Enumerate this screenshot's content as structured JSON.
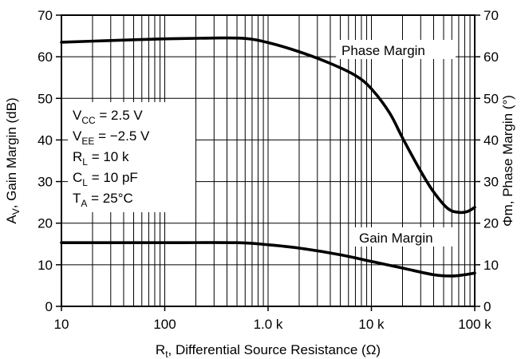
{
  "chart_data": {
    "type": "line",
    "x_scale": "log",
    "xlim": [
      10,
      100000
    ],
    "ylim_left": [
      0,
      70
    ],
    "ylim_right": [
      0,
      70
    ],
    "grid": true,
    "x_ticks": [
      {
        "value": 10,
        "label": "10"
      },
      {
        "value": 100,
        "label": "100"
      },
      {
        "value": 1000,
        "label": "1.0 k"
      },
      {
        "value": 10000,
        "label": "10 k"
      },
      {
        "value": 100000,
        "label": "100 k"
      }
    ],
    "y_ticks_left": [
      0,
      10,
      20,
      30,
      40,
      50,
      60,
      70
    ],
    "y_ticks_right": [
      0,
      10,
      20,
      30,
      40,
      50,
      60,
      70
    ],
    "xlabel": {
      "main": "R",
      "sub": "t",
      "rest": ", Differential Source Resistance (Ω)"
    },
    "ylabel_left": {
      "main": "A",
      "sub": "V",
      "rest": ", Gain Margin (dB)"
    },
    "ylabel_right": "Φm, Phase Margin (°)",
    "conditions": [
      {
        "main": "V",
        "sub": "CC",
        "rest": " = 2.5 V"
      },
      {
        "main": "V",
        "sub": "EE",
        "rest": " = −2.5 V"
      },
      {
        "main": "R",
        "sub": "L",
        "rest": " = 10 k"
      },
      {
        "main": "C",
        "sub": "L",
        "rest": " = 10 pF"
      },
      {
        "main": "T",
        "sub": "A",
        "rest": " = 25°C"
      }
    ],
    "series": [
      {
        "name": "Phase Margin",
        "axis": "right",
        "x": [
          10,
          30,
          100,
          300,
          600,
          1000,
          2000,
          4000,
          7000,
          10000,
          15000,
          20000,
          30000,
          40000,
          55000,
          70000,
          85000,
          100000
        ],
        "y": [
          63.5,
          63.9,
          64.3,
          64.5,
          64.4,
          63.4,
          61.2,
          58.4,
          55.5,
          52.3,
          46.5,
          40.5,
          32.5,
          27.5,
          23.5,
          22.6,
          22.8,
          23.8
        ]
      },
      {
        "name": "Gain Margin",
        "axis": "left",
        "x": [
          10,
          100,
          500,
          1000,
          2000,
          5000,
          10000,
          20000,
          40000,
          60000,
          80000,
          100000
        ],
        "y": [
          15.3,
          15.3,
          15.3,
          14.8,
          14.0,
          12.4,
          10.8,
          9.2,
          7.6,
          7.3,
          7.6,
          8.0
        ]
      }
    ]
  }
}
